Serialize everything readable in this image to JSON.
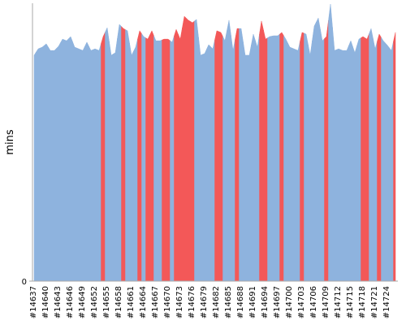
{
  "chart_data": {
    "type": "area",
    "y_label": "mins",
    "categories": [
      "#14637",
      null,
      null,
      "#14640",
      null,
      null,
      "#14643",
      null,
      null,
      "#14646",
      null,
      null,
      "#14649",
      null,
      null,
      "#14652",
      null,
      null,
      "#14655",
      null,
      null,
      "#14658",
      null,
      null,
      "#14661",
      null,
      null,
      "#14664",
      null,
      null,
      "#14667",
      null,
      null,
      "#14670",
      null,
      null,
      "#14673",
      null,
      null,
      "#14676",
      null,
      null,
      "#14679",
      null,
      null,
      "#14682",
      null,
      null,
      "#14685",
      null,
      null,
      "#14688",
      null,
      null,
      "#14691",
      null,
      null,
      "#14694",
      null,
      null,
      "#14697",
      null,
      null,
      "#14700",
      null,
      null,
      "#14703",
      null,
      null,
      "#14706",
      null,
      null,
      "#14709",
      null,
      null,
      "#14712",
      null,
      null,
      "#14715",
      null,
      null,
      "#14718",
      null,
      null,
      "#14721",
      null,
      null,
      "#14724",
      null,
      null
    ],
    "values": [
      81.3,
      83.6,
      84.2,
      85.4,
      83.0,
      83.0,
      84.5,
      87.1,
      86.5,
      88.0,
      84.2,
      83.6,
      83.0,
      86.0,
      83.0,
      83.6,
      83.0,
      88.0,
      91.2,
      81.3,
      82.2,
      92.4,
      90.9,
      90.1,
      81.3,
      84.2,
      90.1,
      88.0,
      87.1,
      90.1,
      86.5,
      86.5,
      87.1,
      87.1,
      86.0,
      90.6,
      87.1,
      95.3,
      93.9,
      93.0,
      94.2,
      81.3,
      81.9,
      85.1,
      83.6,
      90.1,
      89.5,
      86.5,
      93.9,
      83.0,
      90.9,
      90.9,
      81.3,
      81.3,
      88.9,
      84.2,
      93.6,
      87.1,
      88.0,
      88.3,
      88.3,
      89.5,
      87.1,
      84.2,
      83.6,
      83.0,
      89.5,
      88.9,
      81.3,
      91.8,
      94.7,
      86.5,
      88.0,
      99.7,
      83.0,
      83.6,
      83.0,
      83.0,
      86.5,
      82.2,
      87.1,
      88.0,
      87.1,
      90.9,
      83.6,
      88.9,
      86.5,
      84.9,
      83.0,
      89.5
    ],
    "colors": [
      "#8eb3de",
      "#8eb3de",
      "#8eb3de",
      "#8eb3de",
      "#8eb3de",
      "#8eb3de",
      "#8eb3de",
      "#8eb3de",
      "#8eb3de",
      "#8eb3de",
      "#8eb3de",
      "#8eb3de",
      "#8eb3de",
      "#8eb3de",
      "#8eb3de",
      "#8eb3de",
      "#8eb3de",
      "#f35858",
      "#8eb3de",
      "#8eb3de",
      "#8eb3de",
      "#8eb3de",
      "#f35858",
      "#8eb3de",
      "#8eb3de",
      "#8eb3de",
      "#f35858",
      "#8eb3de",
      "#f35858",
      "#f35858",
      "#8eb3de",
      "#8eb3de",
      "#f35858",
      "#f35858",
      "#8eb3de",
      "#f35858",
      "#f35858",
      "#f35858",
      "#f35858",
      "#f35858",
      "#8eb3de",
      "#8eb3de",
      "#8eb3de",
      "#8eb3de",
      "#8eb3de",
      "#f35858",
      "#f35858",
      "#8eb3de",
      "#8eb3de",
      "#8eb3de",
      "#f35858",
      "#8eb3de",
      "#8eb3de",
      "#8eb3de",
      "#8eb3de",
      "#8eb3de",
      "#f35858",
      "#f35858",
      "#8eb3de",
      "#8eb3de",
      "#8eb3de",
      "#f35858",
      "#8eb3de",
      "#8eb3de",
      "#8eb3de",
      "#8eb3de",
      "#f35858",
      "#8eb3de",
      "#8eb3de",
      "#8eb3de",
      "#8eb3de",
      "#8eb3de",
      "#f35858",
      "#8eb3de",
      "#8eb3de",
      "#8eb3de",
      "#8eb3de",
      "#8eb3de",
      "#8eb3de",
      "#8eb3de",
      "#8eb3de",
      "#f35858",
      "#f35858",
      "#8eb3de",
      "#8eb3de",
      "#f35858",
      "#8eb3de",
      "#8eb3de",
      "#8eb3de",
      "#f35858"
    ],
    "ylim": [
      0,
      100
    ],
    "yticks": [
      0
    ]
  }
}
